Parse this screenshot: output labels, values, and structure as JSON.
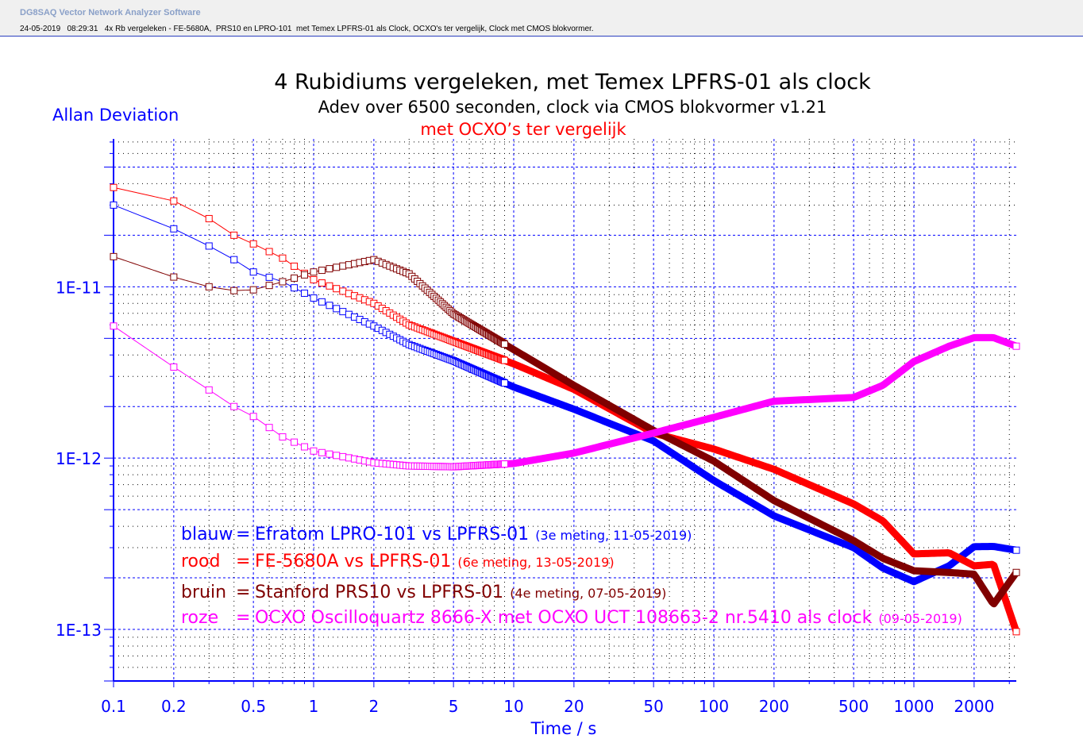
{
  "window": {
    "app_title": "DG8SAQ Vector Network Analyzer Software",
    "subtitle": "24-05-2019   08:29:31   4x Rb vergeleken - FE-5680A,  PRS10 en LPRO-101  met Temex LPFRS-01 als Clock, OCXO's ter vergelijk, Clock met CMOS blokvormer."
  },
  "chart_data": {
    "type": "line",
    "title": "4 Rubidiums vergeleken, met Temex LPFRS-01 als clock",
    "subtitle": "Adev over 6500 seconden,  clock via CMOS blokvormer v1.21",
    "subtitle2": "met OCXO’s ter vergelijk",
    "ylabel": "Allan Deviation",
    "xlabel": "Time / s",
    "xscale": "log",
    "yscale": "log",
    "xlim": [
      0.1,
      3250
    ],
    "ylim": [
      5e-14,
      7.3e-11
    ],
    "grid": true,
    "xticks": [
      {
        "v": 0.1,
        "l": "0.1"
      },
      {
        "v": 0.2,
        "l": "0.2"
      },
      {
        "v": 0.5,
        "l": "0.5"
      },
      {
        "v": 1,
        "l": "1"
      },
      {
        "v": 2,
        "l": "2"
      },
      {
        "v": 5,
        "l": "5"
      },
      {
        "v": 10,
        "l": "10"
      },
      {
        "v": 20,
        "l": "20"
      },
      {
        "v": 50,
        "l": "50"
      },
      {
        "v": 100,
        "l": "100"
      },
      {
        "v": 200,
        "l": "200"
      },
      {
        "v": 500,
        "l": "500"
      },
      {
        "v": 1000,
        "l": "1000"
      },
      {
        "v": 2000,
        "l": "2000"
      }
    ],
    "yticks": [
      {
        "v": 1e-11,
        "l": "1E-11"
      },
      {
        "v": 1e-12,
        "l": "1E-12"
      },
      {
        "v": 1e-13,
        "l": "1E-13"
      }
    ],
    "legend": [
      {
        "key": "blauw",
        "eq": "=",
        "text": "Efratom LPRO-101 vs LPFRS-01",
        "note": "(3e meting, 11-05-2019)",
        "color": "#0000ff"
      },
      {
        "key": "rood",
        "eq": "=",
        "text": "FE-5680A vs LPFRS-01",
        "note": "(6e meting, 13-05-2019)",
        "color": "#ff0000"
      },
      {
        "key": "bruin",
        "eq": "=",
        "text": "Stanford PRS10 vs LPFRS-01",
        "note": "(4e meting, 07-05-2019)",
        "color": "#800000"
      },
      {
        "key": "roze",
        "eq": "=",
        "text": "OCXO Oscilloquartz 8666-X  met OCXO UCT 108663-2 nr.5410 als clock",
        "note": "(09-05-2019)",
        "color": "#ff00ff"
      }
    ],
    "x": [
      0.1,
      0.2,
      0.3,
      0.4,
      0.5,
      0.7,
      1,
      2,
      3,
      5,
      10,
      20,
      50,
      100,
      200,
      500,
      700,
      1000,
      1500,
      2000,
      2500,
      3250
    ],
    "series": [
      {
        "name": "blauw",
        "color": "#0000ff",
        "values": [
          3e-11,
          2.18e-11,
          1.73e-11,
          1.44e-11,
          1.22e-11,
          1.07e-11,
          8.6e-12,
          5.9e-12,
          4.6e-12,
          3.7e-12,
          2.6e-12,
          1.93e-12,
          1.26e-12,
          7.4e-13,
          4.6e-13,
          3e-13,
          2.28e-13,
          1.9e-13,
          2.35e-13,
          3.04e-13,
          3.05e-13,
          2.9e-13
        ]
      },
      {
        "name": "rood",
        "color": "#ff0000",
        "values": [
          3.8e-11,
          3.17e-11,
          2.5e-11,
          2e-11,
          1.78e-11,
          1.47e-11,
          1.1e-11,
          8e-12,
          6e-12,
          4.8e-12,
          3.55e-12,
          2.52e-12,
          1.4e-12,
          1.13e-12,
          8.6e-13,
          5.4e-13,
          4.3e-13,
          2.76e-13,
          2.8e-13,
          2.35e-13,
          2.4e-13,
          9.7e-14
        ]
      },
      {
        "name": "bruin",
        "color": "#800000",
        "values": [
          1.5e-11,
          1.14e-11,
          1e-11,
          9.5e-12,
          9.6e-12,
          1.07e-11,
          1.22e-11,
          1.44e-11,
          1.19e-11,
          6.95e-12,
          4.3e-12,
          2.66e-12,
          1.45e-12,
          9.6e-13,
          5.65e-13,
          3.3e-13,
          2.6e-13,
          2.2e-13,
          2.15e-13,
          2.1e-13,
          1.4e-13,
          2.15e-13
        ]
      },
      {
        "name": "roze",
        "color": "#ff00ff",
        "values": [
          5.9e-12,
          3.4e-12,
          2.5e-12,
          2e-12,
          1.75e-12,
          1.33e-12,
          1.1e-12,
          9.4e-13,
          9e-13,
          8.9e-13,
          9.3e-13,
          1.07e-12,
          1.4e-12,
          1.73e-12,
          2.15e-12,
          2.26e-12,
          2.66e-12,
          3.66e-12,
          4.5e-12,
          5.05e-12,
          5.05e-12,
          4.5e-12
        ]
      }
    ]
  }
}
